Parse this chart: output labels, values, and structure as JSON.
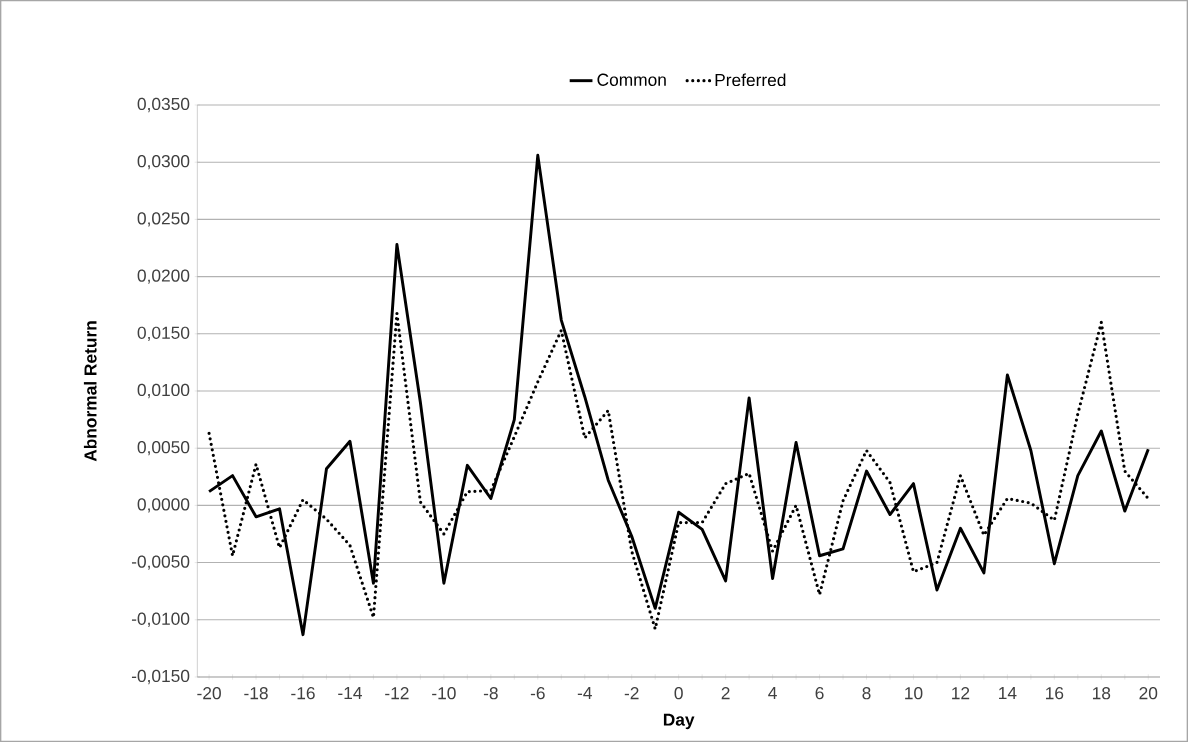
{
  "chart_data": {
    "type": "line",
    "xlabel": "Day",
    "ylabel": "Abnormal Return",
    "categories": [
      "-20",
      null,
      "-18",
      null,
      "-16",
      null,
      "-14",
      null,
      "-12",
      null,
      "-10",
      null,
      "-8",
      null,
      "-6",
      null,
      "-4",
      null,
      "-2",
      null,
      "0",
      null,
      "2",
      null,
      "4",
      null,
      "6",
      null,
      "8",
      null,
      "10",
      null,
      "12",
      null,
      "14",
      null,
      "16",
      null,
      "18",
      null,
      "20"
    ],
    "series": [
      {
        "name": "Common",
        "color": "#000000",
        "line_style": "solid",
        "values": [
          0.0012,
          0.0026,
          -0.001,
          -0.0003,
          -0.0113,
          0.0032,
          0.0056,
          -0.0068,
          0.0228,
          0.009,
          -0.0068,
          0.0035,
          0.0006,
          0.0075,
          0.0306,
          0.0162,
          0.0095,
          0.0022,
          -0.0027,
          -0.009,
          -0.0006,
          -0.0021,
          -0.0066,
          0.0094,
          -0.0064,
          0.0055,
          -0.0044,
          -0.0038,
          0.003,
          -0.0008,
          0.0019,
          -0.0074,
          -0.002,
          -0.0059,
          0.0114,
          0.0048,
          -0.0051,
          0.0026,
          0.0065,
          -0.0005,
          0.0049
        ]
      },
      {
        "name": "Preferred",
        "color": "#000000",
        "line_style": "dotted",
        "values": [
          0.0063,
          -0.0044,
          0.0036,
          -0.0037,
          0.0005,
          -0.0012,
          -0.0035,
          -0.0098,
          0.0168,
          0.0003,
          -0.0025,
          0.0012,
          0.0013,
          0.006,
          0.0108,
          0.0153,
          0.0059,
          0.0083,
          -0.004,
          -0.0108,
          -0.0015,
          -0.0015,
          0.0019,
          0.0028,
          -0.004,
          0.0,
          -0.0078,
          0.0004,
          0.0048,
          0.002,
          -0.0058,
          -0.005,
          0.0026,
          -0.0026,
          0.0006,
          0.0002,
          -0.0013,
          0.008,
          0.016,
          0.003,
          0.0006
        ]
      }
    ],
    "ylim": [
      -0.015,
      0.035
    ],
    "yticks": [
      {
        "value": -0.015,
        "label": "-0,0150"
      },
      {
        "value": -0.01,
        "label": "-0,0100"
      },
      {
        "value": -0.005,
        "label": "-0,0050"
      },
      {
        "value": 0,
        "label": "0,0000"
      },
      {
        "value": 0.005,
        "label": "0,0050"
      },
      {
        "value": 0.01,
        "label": "0,0100"
      },
      {
        "value": 0.015,
        "label": "0,0150"
      },
      {
        "value": 0.02,
        "label": "0,0200"
      },
      {
        "value": 0.025,
        "label": "0,0250"
      },
      {
        "value": 0.03,
        "label": "0,0300"
      },
      {
        "value": 0.035,
        "label": "0,0350"
      }
    ],
    "grid": "y",
    "legend": "top",
    "marker": "none"
  }
}
